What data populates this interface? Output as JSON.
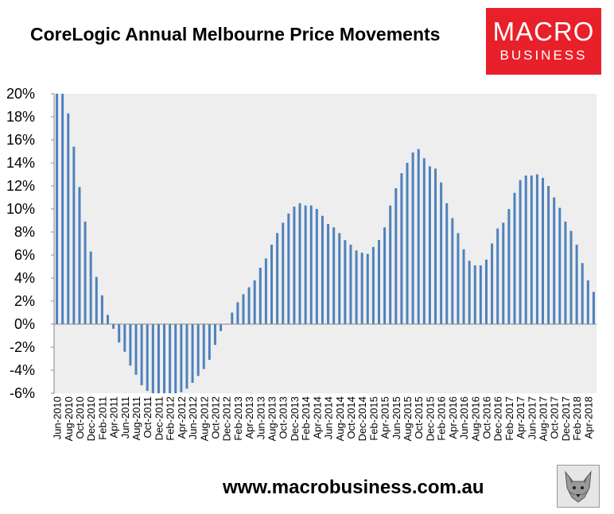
{
  "title": "CoreLogic Annual Melbourne Price Movements",
  "logo": {
    "line1": "MACRO",
    "line2": "BUSINESS"
  },
  "website": "www.macrobusiness.com.au",
  "colors": {
    "bar": "#4f81bd",
    "plot_bg": "#eeeeee",
    "logo_bg": "#e8202a"
  },
  "chart_data": {
    "type": "bar",
    "title": "CoreLogic Annual Melbourne Price Movements",
    "xlabel": "",
    "ylabel": "",
    "ylim": [
      -6,
      20
    ],
    "yticks": [
      "-6%",
      "-4%",
      "-2%",
      "0%",
      "2%",
      "4%",
      "6%",
      "8%",
      "10%",
      "12%",
      "14%",
      "16%",
      "18%",
      "20%"
    ],
    "grid": false,
    "categories": [
      "Jun-2010",
      "Jul-2010",
      "Aug-2010",
      "Sep-2010",
      "Oct-2010",
      "Nov-2010",
      "Dec-2010",
      "Jan-2011",
      "Feb-2011",
      "Mar-2011",
      "Apr-2011",
      "May-2011",
      "Jun-2011",
      "Jul-2011",
      "Aug-2011",
      "Sep-2011",
      "Oct-2011",
      "Nov-2011",
      "Dec-2011",
      "Jan-2012",
      "Feb-2012",
      "Mar-2012",
      "Apr-2012",
      "May-2012",
      "Jun-2012",
      "Jul-2012",
      "Aug-2012",
      "Sep-2012",
      "Oct-2012",
      "Nov-2012",
      "Dec-2012",
      "Jan-2013",
      "Feb-2013",
      "Mar-2013",
      "Apr-2013",
      "May-2013",
      "Jun-2013",
      "Jul-2013",
      "Aug-2013",
      "Sep-2013",
      "Oct-2013",
      "Nov-2013",
      "Dec-2013",
      "Jan-2014",
      "Feb-2014",
      "Mar-2014",
      "Apr-2014",
      "May-2014",
      "Jun-2014",
      "Jul-2014",
      "Aug-2014",
      "Sep-2014",
      "Oct-2014",
      "Nov-2014",
      "Dec-2014",
      "Jan-2015",
      "Feb-2015",
      "Mar-2015",
      "Apr-2015",
      "May-2015",
      "Jun-2015",
      "Jul-2015",
      "Aug-2015",
      "Sep-2015",
      "Oct-2015",
      "Nov-2015",
      "Dec-2015",
      "Jan-2016",
      "Feb-2016",
      "Mar-2016",
      "Apr-2016",
      "May-2016",
      "Jun-2016",
      "Jul-2016",
      "Aug-2016",
      "Sep-2016",
      "Oct-2016",
      "Nov-2016",
      "Dec-2016",
      "Jan-2017",
      "Feb-2017",
      "Mar-2017",
      "Apr-2017",
      "May-2017",
      "Jun-2017",
      "Jul-2017",
      "Aug-2017",
      "Sep-2017",
      "Oct-2017",
      "Nov-2017",
      "Dec-2017",
      "Jan-2018",
      "Feb-2018",
      "Mar-2018",
      "Apr-2018",
      "May-2018"
    ],
    "tick_labels": [
      "Jun-2010",
      "Aug-2010",
      "Oct-2010",
      "Dec-2010",
      "Feb-2011",
      "Apr-2011",
      "Jun-2011",
      "Aug-2011",
      "Oct-2011",
      "Dec-2011",
      "Feb-2012",
      "Apr-2012",
      "Jun-2012",
      "Aug-2012",
      "Oct-2012",
      "Dec-2012",
      "Feb-2013",
      "Apr-2013",
      "Jun-2013",
      "Aug-2013",
      "Oct-2013",
      "Dec-2013",
      "Feb-2014",
      "Apr-2014",
      "Jun-2014",
      "Aug-2014",
      "Oct-2014",
      "Dec-2014",
      "Feb-2015",
      "Apr-2015",
      "Jun-2015",
      "Aug-2015",
      "Oct-2015",
      "Dec-2015",
      "Feb-2016",
      "Apr-2016",
      "Jun-2016",
      "Aug-2016",
      "Oct-2016",
      "Dec-2016",
      "Feb-2017",
      "Apr-2017",
      "Jun-2017",
      "Aug-2017",
      "Oct-2017",
      "Dec-2017",
      "Feb-2018",
      "Apr-2018"
    ],
    "values": [
      20.0,
      20.0,
      18.3,
      15.4,
      11.9,
      8.9,
      6.3,
      4.1,
      2.5,
      0.8,
      -0.4,
      -1.6,
      -2.4,
      -3.6,
      -4.4,
      -5.3,
      -5.8,
      -6.0,
      -6.0,
      -6.0,
      -6.0,
      -6.0,
      -5.9,
      -5.6,
      -5.1,
      -4.5,
      -3.9,
      -3.1,
      -1.8,
      -0.6,
      0.0,
      1.0,
      1.9,
      2.6,
      3.2,
      3.8,
      4.9,
      5.7,
      6.9,
      7.9,
      8.8,
      9.6,
      10.2,
      10.5,
      10.3,
      10.3,
      10.0,
      9.4,
      8.7,
      8.4,
      7.9,
      7.3,
      6.9,
      6.4,
      6.2,
      6.1,
      6.7,
      7.3,
      8.4,
      10.3,
      11.8,
      13.1,
      14.0,
      14.9,
      15.2,
      14.4,
      13.7,
      13.5,
      12.3,
      10.5,
      9.2,
      7.9,
      6.5,
      5.5,
      5.1,
      5.1,
      5.6,
      7.0,
      8.3,
      8.8,
      10.0,
      11.4,
      12.5,
      12.9,
      12.9,
      13.0,
      12.7,
      12.0,
      11.0,
      10.1,
      8.9,
      8.1,
      6.9,
      5.3,
      3.8,
      2.8
    ]
  }
}
